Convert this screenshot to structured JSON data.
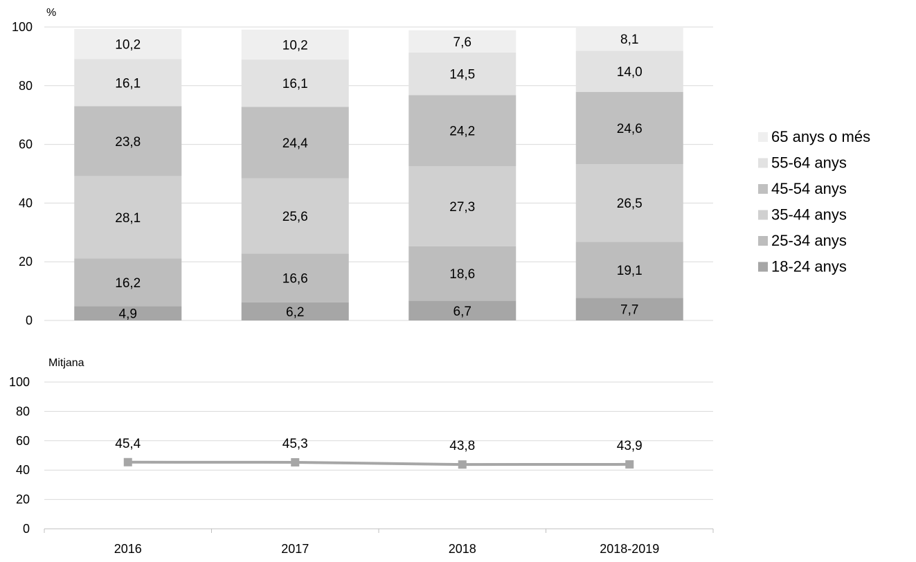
{
  "chart_data": [
    {
      "type": "bar",
      "stacked": true,
      "unit_label": "%",
      "categories": [
        "2016",
        "2017",
        "2018",
        "2018-2019"
      ],
      "ylim": [
        0,
        100
      ],
      "yticks": [
        0,
        20,
        40,
        60,
        80,
        100
      ],
      "grid": true,
      "legend_position": "right",
      "series": [
        {
          "name": "18-24 anys",
          "color": "#a6a6a6",
          "values": [
            4.9,
            6.2,
            6.7,
            7.7
          ],
          "labels": [
            "4,9",
            "6,2",
            "6,7",
            "7,7"
          ]
        },
        {
          "name": "25-34 anys",
          "color": "#bdbdbd",
          "values": [
            16.2,
            16.6,
            18.6,
            19.1
          ],
          "labels": [
            "16,2",
            "16,6",
            "18,6",
            "19,1"
          ]
        },
        {
          "name": "35-44 anys",
          "color": "#d0d0d0",
          "values": [
            28.1,
            25.6,
            27.3,
            26.5
          ],
          "labels": [
            "28,1",
            "25,6",
            "27,3",
            "26,5"
          ]
        },
        {
          "name": "45-54 anys",
          "color": "#c0c0c0",
          "values": [
            23.8,
            24.4,
            24.2,
            24.6
          ],
          "labels": [
            "23,8",
            "24,4",
            "24,2",
            "24,6"
          ]
        },
        {
          "name": "55-64 anys",
          "color": "#e2e2e2",
          "values": [
            16.1,
            16.1,
            14.5,
            14.0
          ],
          "labels": [
            "16,1",
            "16,1",
            "14,5",
            "14,0"
          ]
        },
        {
          "name": "65 anys o més",
          "color": "#efefef",
          "values": [
            10.2,
            10.2,
            7.6,
            8.1
          ],
          "labels": [
            "10,2",
            "10,2",
            "7,6",
            "8,1"
          ]
        }
      ]
    },
    {
      "type": "line",
      "unit_label": "Mitjana",
      "categories": [
        "2016",
        "2017",
        "2018",
        "2018-2019"
      ],
      "ylim": [
        0,
        100
      ],
      "yticks": [
        0,
        20,
        40,
        60,
        80,
        100
      ],
      "grid": true,
      "series": [
        {
          "color": "#a6a6a6",
          "values": [
            45.4,
            45.3,
            43.8,
            43.9
          ],
          "labels": [
            "45,4",
            "45,3",
            "43,8",
            "43,9"
          ]
        }
      ]
    }
  ]
}
